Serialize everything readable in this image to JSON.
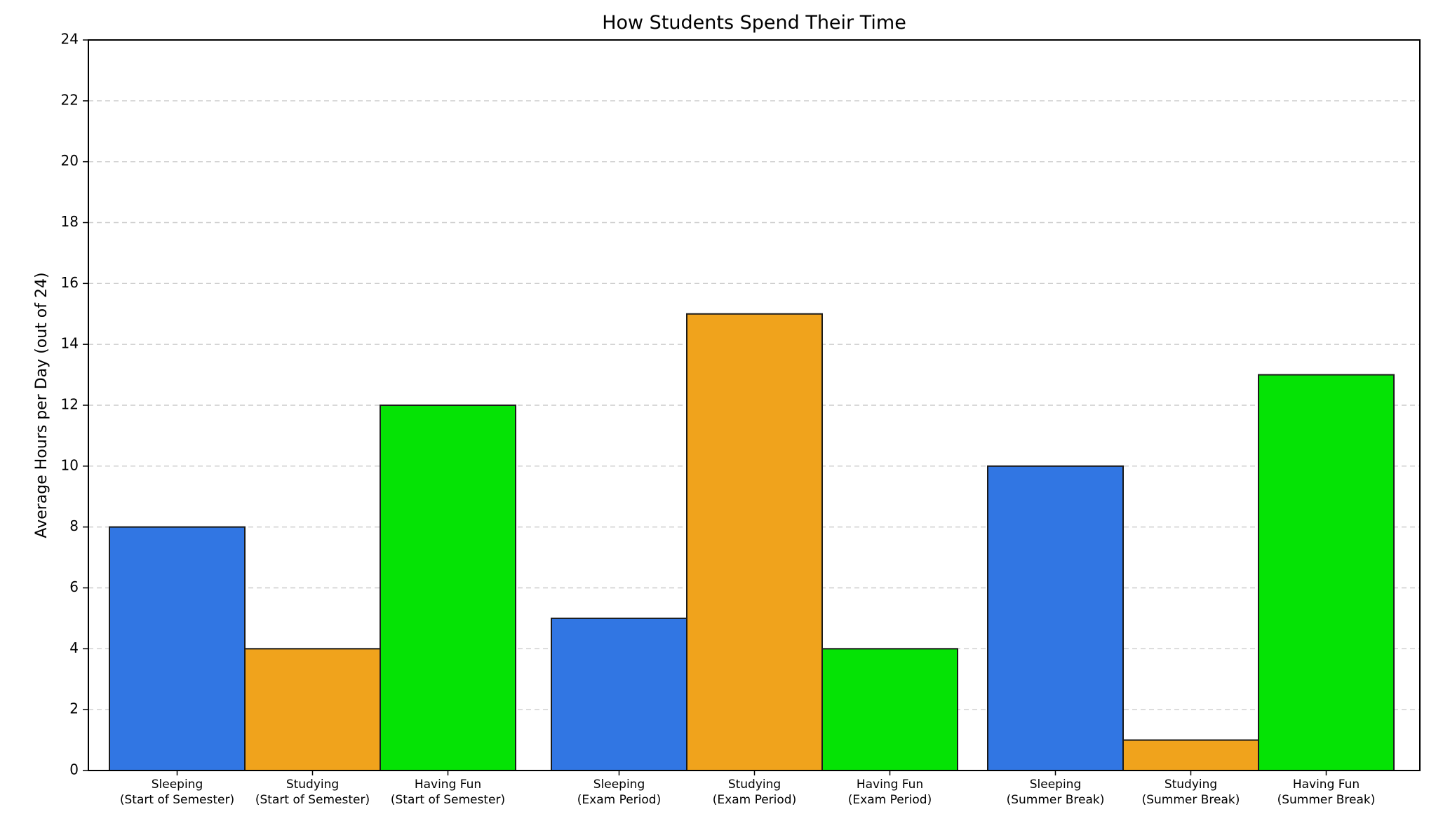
{
  "chart_data": {
    "type": "bar",
    "title": "How Students Spend Their Time",
    "xlabel": "",
    "ylabel": "Average Hours per Day (out of 24)",
    "ylim": [
      0,
      24
    ],
    "yticks": [
      0,
      2,
      4,
      6,
      8,
      10,
      12,
      14,
      16,
      18,
      20,
      22,
      24
    ],
    "grid": "y, dashed",
    "groups": [
      {
        "bars": [
          {
            "line1": "Sleeping",
            "line2": "(Start of Semester)",
            "value": 8,
            "activity": "Sleeping"
          },
          {
            "line1": "Studying",
            "line2": "(Start of Semester)",
            "value": 4,
            "activity": "Studying"
          },
          {
            "line1": "Having Fun",
            "line2": "(Start of Semester)",
            "value": 12,
            "activity": "Having Fun"
          }
        ]
      },
      {
        "bars": [
          {
            "line1": "Sleeping",
            "line2": "(Exam Period)",
            "value": 5,
            "activity": "Sleeping"
          },
          {
            "line1": "Studying",
            "line2": "(Exam Period)",
            "value": 15,
            "activity": "Studying"
          },
          {
            "line1": "Having Fun",
            "line2": "(Exam Period)",
            "value": 4,
            "activity": "Having Fun"
          }
        ]
      },
      {
        "bars": [
          {
            "line1": "Sleeping",
            "line2": "(Summer Break)",
            "value": 10,
            "activity": "Sleeping"
          },
          {
            "line1": "Studying",
            "line2": "(Summer Break)",
            "value": 1,
            "activity": "Studying"
          },
          {
            "line1": "Having Fun",
            "line2": "(Summer Break)",
            "value": 13,
            "activity": "Having Fun"
          }
        ]
      }
    ],
    "colors": {
      "Sleeping": "#3176e3",
      "Studying": "#f0a31c",
      "Having Fun": "#05e305",
      "grid": "#cccccc",
      "axis": "#000000"
    }
  }
}
